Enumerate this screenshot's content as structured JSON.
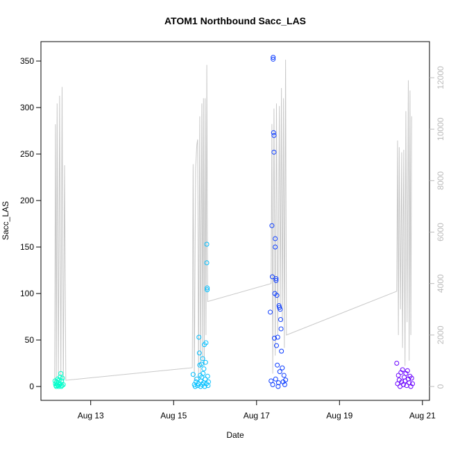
{
  "chart_data": {
    "type": "scatter",
    "title": "ATOM1 Northbound Sacc_LAS",
    "x_label": "Date",
    "y_label": "Sacc_LAS",
    "xlim": [
      11.8,
      21.17
    ],
    "ylim": [
      -14.9,
      370.9
    ],
    "y2lim": [
      -539,
      13402
    ],
    "xticks": [
      {
        "value": 13,
        "label": "Aug 13"
      },
      {
        "value": 15,
        "label": "Aug 15"
      },
      {
        "value": 17,
        "label": "Aug 17"
      },
      {
        "value": 19,
        "label": "Aug 19"
      },
      {
        "value": 21,
        "label": "Aug 21"
      }
    ],
    "yticks": [
      0,
      50,
      100,
      150,
      200,
      250,
      300,
      350
    ],
    "y2ticks": [
      0,
      2000,
      4000,
      6000,
      8000,
      10000,
      12000
    ],
    "y2_color": "#bbbbbb",
    "series": [
      {
        "type": "line",
        "axis": "y2",
        "color": "#c8c8c8",
        "x": [
          12.13,
          12.15,
          12.17,
          12.19,
          12.22,
          12.25,
          12.28,
          12.31,
          12.34,
          12.37,
          12.4,
          15.45,
          15.47,
          15.5,
          15.53,
          15.56,
          15.58,
          15.6,
          15.63,
          15.65,
          15.68,
          15.7,
          15.72,
          15.74,
          15.76,
          15.78,
          15.8,
          15.82,
          17.35,
          17.37,
          17.39,
          17.42,
          17.45,
          17.48,
          17.51,
          17.55,
          17.57,
          17.6,
          17.62,
          17.65,
          17.67,
          17.7,
          17.72,
          20.38,
          20.4,
          20.42,
          20.44,
          20.47,
          20.5,
          20.52,
          20.55,
          20.58,
          20.6,
          20.63,
          20.66,
          20.68,
          20.7,
          20.72,
          20.74
        ],
        "values": [
          0,
          10190,
          100,
          11000,
          300,
          11300,
          200,
          11640,
          0,
          8600,
          240,
          730,
          8640,
          200,
          8500,
          9400,
          9600,
          300,
          10500,
          500,
          11000,
          1000,
          11200,
          800,
          11200,
          2000,
          12500,
          3300,
          4000,
          10200,
          500,
          10800,
          1200,
          11000,
          2000,
          10900,
          3000,
          11600,
          2500,
          11200,
          1500,
          12700,
          2000,
          3700,
          9560,
          2000,
          9300,
          3000,
          9100,
          1500,
          9200,
          800,
          10700,
          2500,
          11900,
          1000,
          11500,
          2000,
          10500
        ]
      },
      {
        "type": "scatter",
        "color": "#00ffcc",
        "x": [
          12.14,
          12.15,
          12.16,
          12.17,
          12.18,
          12.19,
          12.2,
          12.21,
          12.22,
          12.23,
          12.24,
          12.25,
          12.26,
          12.27,
          12.28,
          12.29,
          12.3,
          12.31,
          12.32,
          12.34
        ],
        "values": [
          6,
          3,
          1,
          0,
          5,
          2,
          8,
          1,
          4,
          0,
          7,
          2,
          10,
          3,
          14,
          0,
          6,
          1,
          9,
          2
        ]
      },
      {
        "type": "scatter",
        "color": "#00bfff",
        "x": [
          15.47,
          15.5,
          15.52,
          15.54,
          15.56,
          15.58,
          15.6,
          15.61,
          15.62,
          15.63,
          15.64,
          15.65,
          15.66,
          15.67,
          15.68,
          15.69,
          15.7,
          15.71,
          15.72,
          15.73,
          15.74,
          15.75,
          15.76,
          15.77,
          15.78,
          15.79,
          15.8,
          15.8,
          15.81,
          15.81,
          15.82,
          15.83,
          15.84
        ],
        "values": [
          13,
          2,
          0,
          5,
          8,
          1,
          3,
          53,
          36,
          23,
          12,
          0,
          6,
          24,
          10,
          2,
          30,
          14,
          4,
          19,
          45,
          0,
          8,
          26,
          47,
          3,
          153,
          133,
          104,
          106,
          11,
          1,
          5
        ]
      },
      {
        "type": "scatter",
        "color": "#0a3bff",
        "x": [
          17.33,
          17.35,
          17.37,
          17.38,
          17.39,
          17.4,
          17.4,
          17.41,
          17.42,
          17.42,
          17.43,
          17.44,
          17.45,
          17.45,
          17.46,
          17.47,
          17.47,
          17.48,
          17.49,
          17.5,
          17.51,
          17.52,
          17.53,
          17.54,
          17.55,
          17.56,
          17.57,
          17.58,
          17.59,
          17.6,
          17.62,
          17.64,
          17.66,
          17.68,
          17.7
        ],
        "values": [
          80,
          6,
          173,
          118,
          2,
          354,
          352,
          273,
          270,
          252,
          52,
          100,
          159,
          150,
          8,
          116,
          114,
          44,
          98,
          23,
          53,
          0,
          4,
          87,
          85,
          16,
          83,
          72,
          62,
          38,
          20,
          5,
          12,
          2,
          7
        ]
      },
      {
        "type": "scatter",
        "color": "#6a00ff",
        "x": [
          20.38,
          20.4,
          20.42,
          20.44,
          20.46,
          20.48,
          20.5,
          20.52,
          20.54,
          20.56,
          20.58,
          20.6,
          20.62,
          20.64,
          20.66,
          20.68,
          20.7,
          20.72,
          20.74,
          20.76
        ],
        "values": [
          25,
          3,
          12,
          7,
          0,
          15,
          5,
          18,
          2,
          10,
          6,
          14,
          1,
          17,
          8,
          4,
          11,
          0,
          9,
          3
        ]
      }
    ]
  }
}
